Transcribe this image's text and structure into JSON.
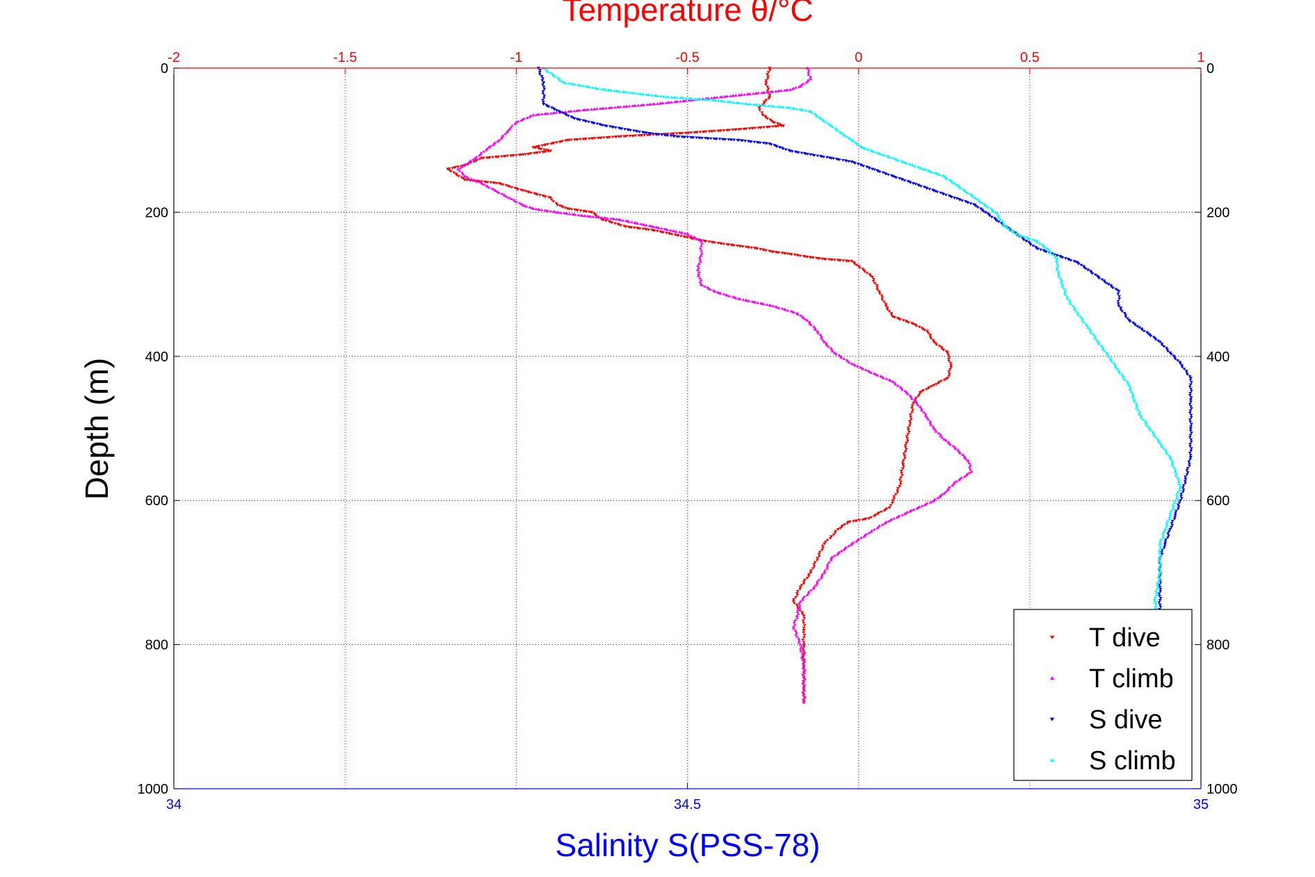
{
  "chart_data": {
    "type": "scatter",
    "title": "Temperature θ/°C",
    "xlabel": "Salinity S(PSS-78)",
    "ylabel": "Depth (m)",
    "x_temperature_axis": {
      "lim": [
        -2,
        1
      ],
      "ticks": [
        -2,
        -1.5,
        -1,
        -0.5,
        0,
        0.5,
        1
      ],
      "tick_labels": [
        "-2",
        "-1.5",
        "-1",
        "-0.5",
        "0",
        "0.5",
        "1"
      ],
      "color": "#ff0000"
    },
    "x_salinity_axis": {
      "lim": [
        34,
        35
      ],
      "ticks": [
        34,
        34.5,
        35
      ],
      "tick_labels": [
        "34",
        "34.5",
        "35"
      ],
      "color": "#0000ff"
    },
    "y_axis": {
      "lim": [
        0,
        1000
      ],
      "reversed": true,
      "ticks": [
        0,
        200,
        400,
        600,
        800,
        1000
      ],
      "tick_labels": [
        "0",
        "200",
        "400",
        "600",
        "800",
        "1000"
      ]
    },
    "grid": true,
    "legend": {
      "placement": "bottom-right",
      "entries": [
        "T dive",
        "T climb",
        "S dive",
        "S climb"
      ]
    },
    "series": [
      {
        "name": "T dive",
        "axis": "temperature",
        "color": "#ff0000",
        "marker": "triangle-down",
        "points": [
          [
            -0.26,
            0
          ],
          [
            -0.27,
            20
          ],
          [
            -0.26,
            40
          ],
          [
            -0.29,
            55
          ],
          [
            -0.28,
            65
          ],
          [
            -0.25,
            75
          ],
          [
            -0.22,
            80
          ],
          [
            -0.35,
            85
          ],
          [
            -0.5,
            90
          ],
          [
            -0.7,
            95
          ],
          [
            -0.85,
            100
          ],
          [
            -0.95,
            110
          ],
          [
            -0.9,
            115
          ],
          [
            -0.98,
            120
          ],
          [
            -1.1,
            125
          ],
          [
            -1.15,
            135
          ],
          [
            -1.2,
            140
          ],
          [
            -1.15,
            155
          ],
          [
            -1.05,
            160
          ],
          [
            -0.98,
            170
          ],
          [
            -0.9,
            180
          ],
          [
            -0.88,
            190
          ],
          [
            -0.85,
            195
          ],
          [
            -0.78,
            200
          ],
          [
            -0.75,
            210
          ],
          [
            -0.68,
            220
          ],
          [
            -0.6,
            225
          ],
          [
            -0.5,
            235
          ],
          [
            -0.45,
            240
          ],
          [
            -0.38,
            245
          ],
          [
            -0.3,
            250
          ],
          [
            -0.25,
            255
          ],
          [
            -0.2,
            258
          ],
          [
            -0.15,
            262
          ],
          [
            -0.1,
            265
          ],
          [
            -0.02,
            268
          ],
          [
            0,
            275
          ],
          [
            0.04,
            290
          ],
          [
            0.06,
            310
          ],
          [
            0.08,
            330
          ],
          [
            0.1,
            345
          ],
          [
            0.16,
            355
          ],
          [
            0.2,
            365
          ],
          [
            0.22,
            380
          ],
          [
            0.26,
            395
          ],
          [
            0.27,
            415
          ],
          [
            0.26,
            430
          ],
          [
            0.22,
            440
          ],
          [
            0.18,
            450
          ],
          [
            0.16,
            465
          ],
          [
            0.15,
            490
          ],
          [
            0.14,
            520
          ],
          [
            0.13,
            550
          ],
          [
            0.12,
            580
          ],
          [
            0.1,
            600
          ],
          [
            0.09,
            610
          ],
          [
            0.05,
            620
          ],
          [
            0.03,
            625
          ],
          [
            -0.03,
            630
          ],
          [
            -0.06,
            640
          ],
          [
            -0.08,
            650
          ],
          [
            -0.1,
            660
          ],
          [
            -0.12,
            680
          ],
          [
            -0.14,
            700
          ],
          [
            -0.17,
            720
          ],
          [
            -0.19,
            740
          ],
          [
            -0.16,
            760
          ],
          [
            -0.16,
            780
          ],
          [
            -0.16,
            800
          ],
          [
            -0.16,
            830
          ],
          [
            -0.16,
            860
          ],
          [
            -0.16,
            880
          ]
        ]
      },
      {
        "name": "T climb",
        "axis": "temperature",
        "color": "#ff00ff",
        "marker": "triangle-up",
        "points": [
          [
            -0.15,
            0
          ],
          [
            -0.14,
            15
          ],
          [
            -0.17,
            25
          ],
          [
            -0.2,
            30
          ],
          [
            -0.4,
            40
          ],
          [
            -0.6,
            50
          ],
          [
            -0.8,
            58
          ],
          [
            -0.95,
            65
          ],
          [
            -1.0,
            75
          ],
          [
            -1.02,
            85
          ],
          [
            -1.05,
            100
          ],
          [
            -1.08,
            110
          ],
          [
            -1.12,
            125
          ],
          [
            -1.17,
            140
          ],
          [
            -1.15,
            150
          ],
          [
            -1.1,
            160
          ],
          [
            -1.06,
            170
          ],
          [
            -1.02,
            180
          ],
          [
            -0.98,
            190
          ],
          [
            -0.95,
            195
          ],
          [
            -0.88,
            200
          ],
          [
            -0.8,
            205
          ],
          [
            -0.7,
            210
          ],
          [
            -0.6,
            220
          ],
          [
            -0.5,
            230
          ],
          [
            -0.46,
            240
          ],
          [
            -0.46,
            260
          ],
          [
            -0.47,
            280
          ],
          [
            -0.46,
            300
          ],
          [
            -0.42,
            310
          ],
          [
            -0.35,
            320
          ],
          [
            -0.25,
            330
          ],
          [
            -0.18,
            340
          ],
          [
            -0.15,
            350
          ],
          [
            -0.12,
            365
          ],
          [
            -0.1,
            380
          ],
          [
            -0.07,
            395
          ],
          [
            -0.02,
            410
          ],
          [
            0.05,
            425
          ],
          [
            0.1,
            435
          ],
          [
            0.14,
            450
          ],
          [
            0.18,
            470
          ],
          [
            0.2,
            485
          ],
          [
            0.22,
            500
          ],
          [
            0.25,
            515
          ],
          [
            0.29,
            530
          ],
          [
            0.32,
            545
          ],
          [
            0.33,
            560
          ],
          [
            0.28,
            575
          ],
          [
            0.25,
            590
          ],
          [
            0.22,
            600
          ],
          [
            0.15,
            615
          ],
          [
            0.08,
            630
          ],
          [
            0.03,
            645
          ],
          [
            -0.02,
            660
          ],
          [
            -0.05,
            670
          ],
          [
            -0.08,
            680
          ],
          [
            -0.1,
            700
          ],
          [
            -0.13,
            720
          ],
          [
            -0.17,
            740
          ],
          [
            -0.18,
            760
          ],
          [
            -0.19,
            775
          ],
          [
            -0.17,
            800
          ],
          [
            -0.16,
            830
          ],
          [
            -0.16,
            860
          ],
          [
            -0.16,
            880
          ]
        ]
      },
      {
        "name": "S dive",
        "axis": "salinity",
        "color": "#0000ff",
        "marker": "triangle-down",
        "points": [
          [
            34.355,
            0
          ],
          [
            34.36,
            20
          ],
          [
            34.36,
            50
          ],
          [
            34.375,
            60
          ],
          [
            34.39,
            70
          ],
          [
            34.42,
            80
          ],
          [
            34.46,
            90
          ],
          [
            34.49,
            95
          ],
          [
            34.55,
            100
          ],
          [
            34.58,
            105
          ],
          [
            34.59,
            110
          ],
          [
            34.6,
            115
          ],
          [
            34.62,
            120
          ],
          [
            34.64,
            125
          ],
          [
            34.66,
            130
          ],
          [
            34.68,
            140
          ],
          [
            34.7,
            150
          ],
          [
            34.72,
            160
          ],
          [
            34.74,
            170
          ],
          [
            34.76,
            180
          ],
          [
            34.78,
            190
          ],
          [
            34.79,
            200
          ],
          [
            34.8,
            210
          ],
          [
            34.81,
            220
          ],
          [
            34.82,
            230
          ],
          [
            34.83,
            240
          ],
          [
            34.84,
            250
          ],
          [
            34.86,
            260
          ],
          [
            34.88,
            270
          ],
          [
            34.89,
            280
          ],
          [
            34.9,
            290
          ],
          [
            34.91,
            300
          ],
          [
            34.92,
            310
          ],
          [
            34.92,
            330
          ],
          [
            34.93,
            350
          ],
          [
            34.94,
            360
          ],
          [
            34.95,
            370
          ],
          [
            34.96,
            380
          ],
          [
            34.97,
            395
          ],
          [
            34.98,
            410
          ],
          [
            34.99,
            430
          ],
          [
            34.99,
            460
          ],
          [
            34.99,
            500
          ],
          [
            34.99,
            540
          ],
          [
            34.985,
            570
          ],
          [
            34.98,
            600
          ],
          [
            34.975,
            620
          ],
          [
            34.97,
            640
          ],
          [
            34.965,
            660
          ],
          [
            34.96,
            680
          ],
          [
            34.96,
            720
          ],
          [
            34.96,
            760
          ],
          [
            34.965,
            780
          ],
          [
            34.97,
            800
          ],
          [
            34.97,
            840
          ],
          [
            34.97,
            880
          ]
        ]
      },
      {
        "name": "S climb",
        "axis": "salinity",
        "color": "#00ffff",
        "marker": "triangle-up",
        "points": [
          [
            34.36,
            0
          ],
          [
            34.38,
            20
          ],
          [
            34.42,
            30
          ],
          [
            34.48,
            40
          ],
          [
            34.53,
            45
          ],
          [
            34.56,
            50
          ],
          [
            34.6,
            55
          ],
          [
            34.62,
            60
          ],
          [
            34.63,
            70
          ],
          [
            34.64,
            80
          ],
          [
            34.65,
            90
          ],
          [
            34.66,
            100
          ],
          [
            34.67,
            110
          ],
          [
            34.69,
            120
          ],
          [
            34.71,
            130
          ],
          [
            34.73,
            140
          ],
          [
            34.75,
            150
          ],
          [
            34.76,
            160
          ],
          [
            34.77,
            170
          ],
          [
            34.78,
            180
          ],
          [
            34.79,
            190
          ],
          [
            34.8,
            200
          ],
          [
            34.81,
            220
          ],
          [
            34.82,
            230
          ],
          [
            34.84,
            240
          ],
          [
            34.85,
            250
          ],
          [
            34.86,
            265
          ],
          [
            34.86,
            280
          ],
          [
            34.865,
            300
          ],
          [
            34.87,
            320
          ],
          [
            34.88,
            340
          ],
          [
            34.89,
            360
          ],
          [
            34.9,
            380
          ],
          [
            34.91,
            400
          ],
          [
            34.92,
            420
          ],
          [
            34.93,
            440
          ],
          [
            34.935,
            460
          ],
          [
            34.94,
            480
          ],
          [
            34.95,
            500
          ],
          [
            34.96,
            520
          ],
          [
            34.97,
            540
          ],
          [
            34.975,
            560
          ],
          [
            34.98,
            580
          ],
          [
            34.975,
            600
          ],
          [
            34.97,
            620
          ],
          [
            34.965,
            640
          ],
          [
            34.96,
            660
          ],
          [
            34.96,
            700
          ],
          [
            34.955,
            740
          ],
          [
            34.96,
            780
          ],
          [
            34.96,
            820
          ],
          [
            34.965,
            860
          ],
          [
            34.97,
            880
          ]
        ]
      }
    ]
  }
}
